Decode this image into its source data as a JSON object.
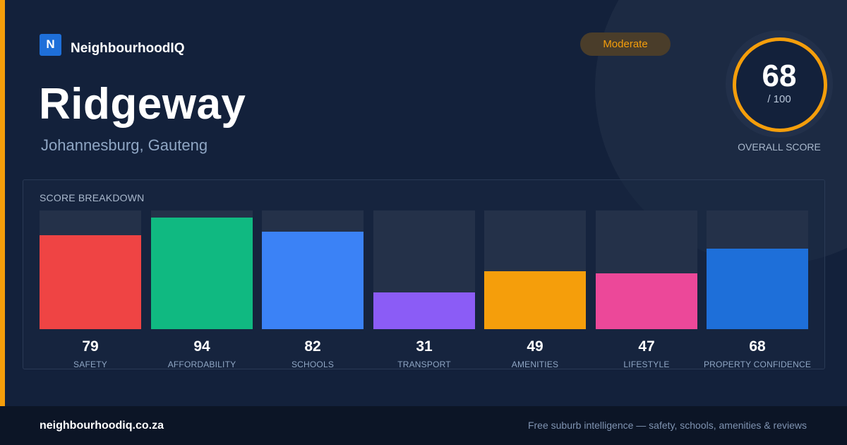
{
  "brand": {
    "logo_letter": "N",
    "name": "NeighbourhoodIQ"
  },
  "suburb": {
    "name": "Ridgeway",
    "location": "Johannesburg, Gauteng"
  },
  "rating_badge": "Moderate",
  "overall": {
    "score": "68",
    "out_of": "/ 100",
    "label": "OVERALL SCORE",
    "ring_color": "#f59e0b"
  },
  "breakdown": {
    "title": "SCORE BREAKDOWN",
    "max": 100,
    "items": [
      {
        "label": "SAFETY",
        "value": "79",
        "color": "#ef4444"
      },
      {
        "label": "AFFORDABILITY",
        "value": "94",
        "color": "#10b981"
      },
      {
        "label": "SCHOOLS",
        "value": "82",
        "color": "#3b82f6"
      },
      {
        "label": "TRANSPORT",
        "value": "31",
        "color": "#8b5cf6"
      },
      {
        "label": "AMENITIES",
        "value": "49",
        "color": "#f59e0b"
      },
      {
        "label": "LIFESTYLE",
        "value": "47",
        "color": "#ec4899"
      },
      {
        "label": "PROPERTY CONFIDENCE",
        "value": "68",
        "color": "#1e6fd9"
      }
    ]
  },
  "footer": {
    "site": "neighbourhoodiq.co.za",
    "tagline": "Free suburb intelligence — safety, schools, amenities & reviews"
  },
  "colors": {
    "accent": "#f59e0b",
    "background": "#13213b",
    "brand_blue": "#1e6fd9"
  }
}
